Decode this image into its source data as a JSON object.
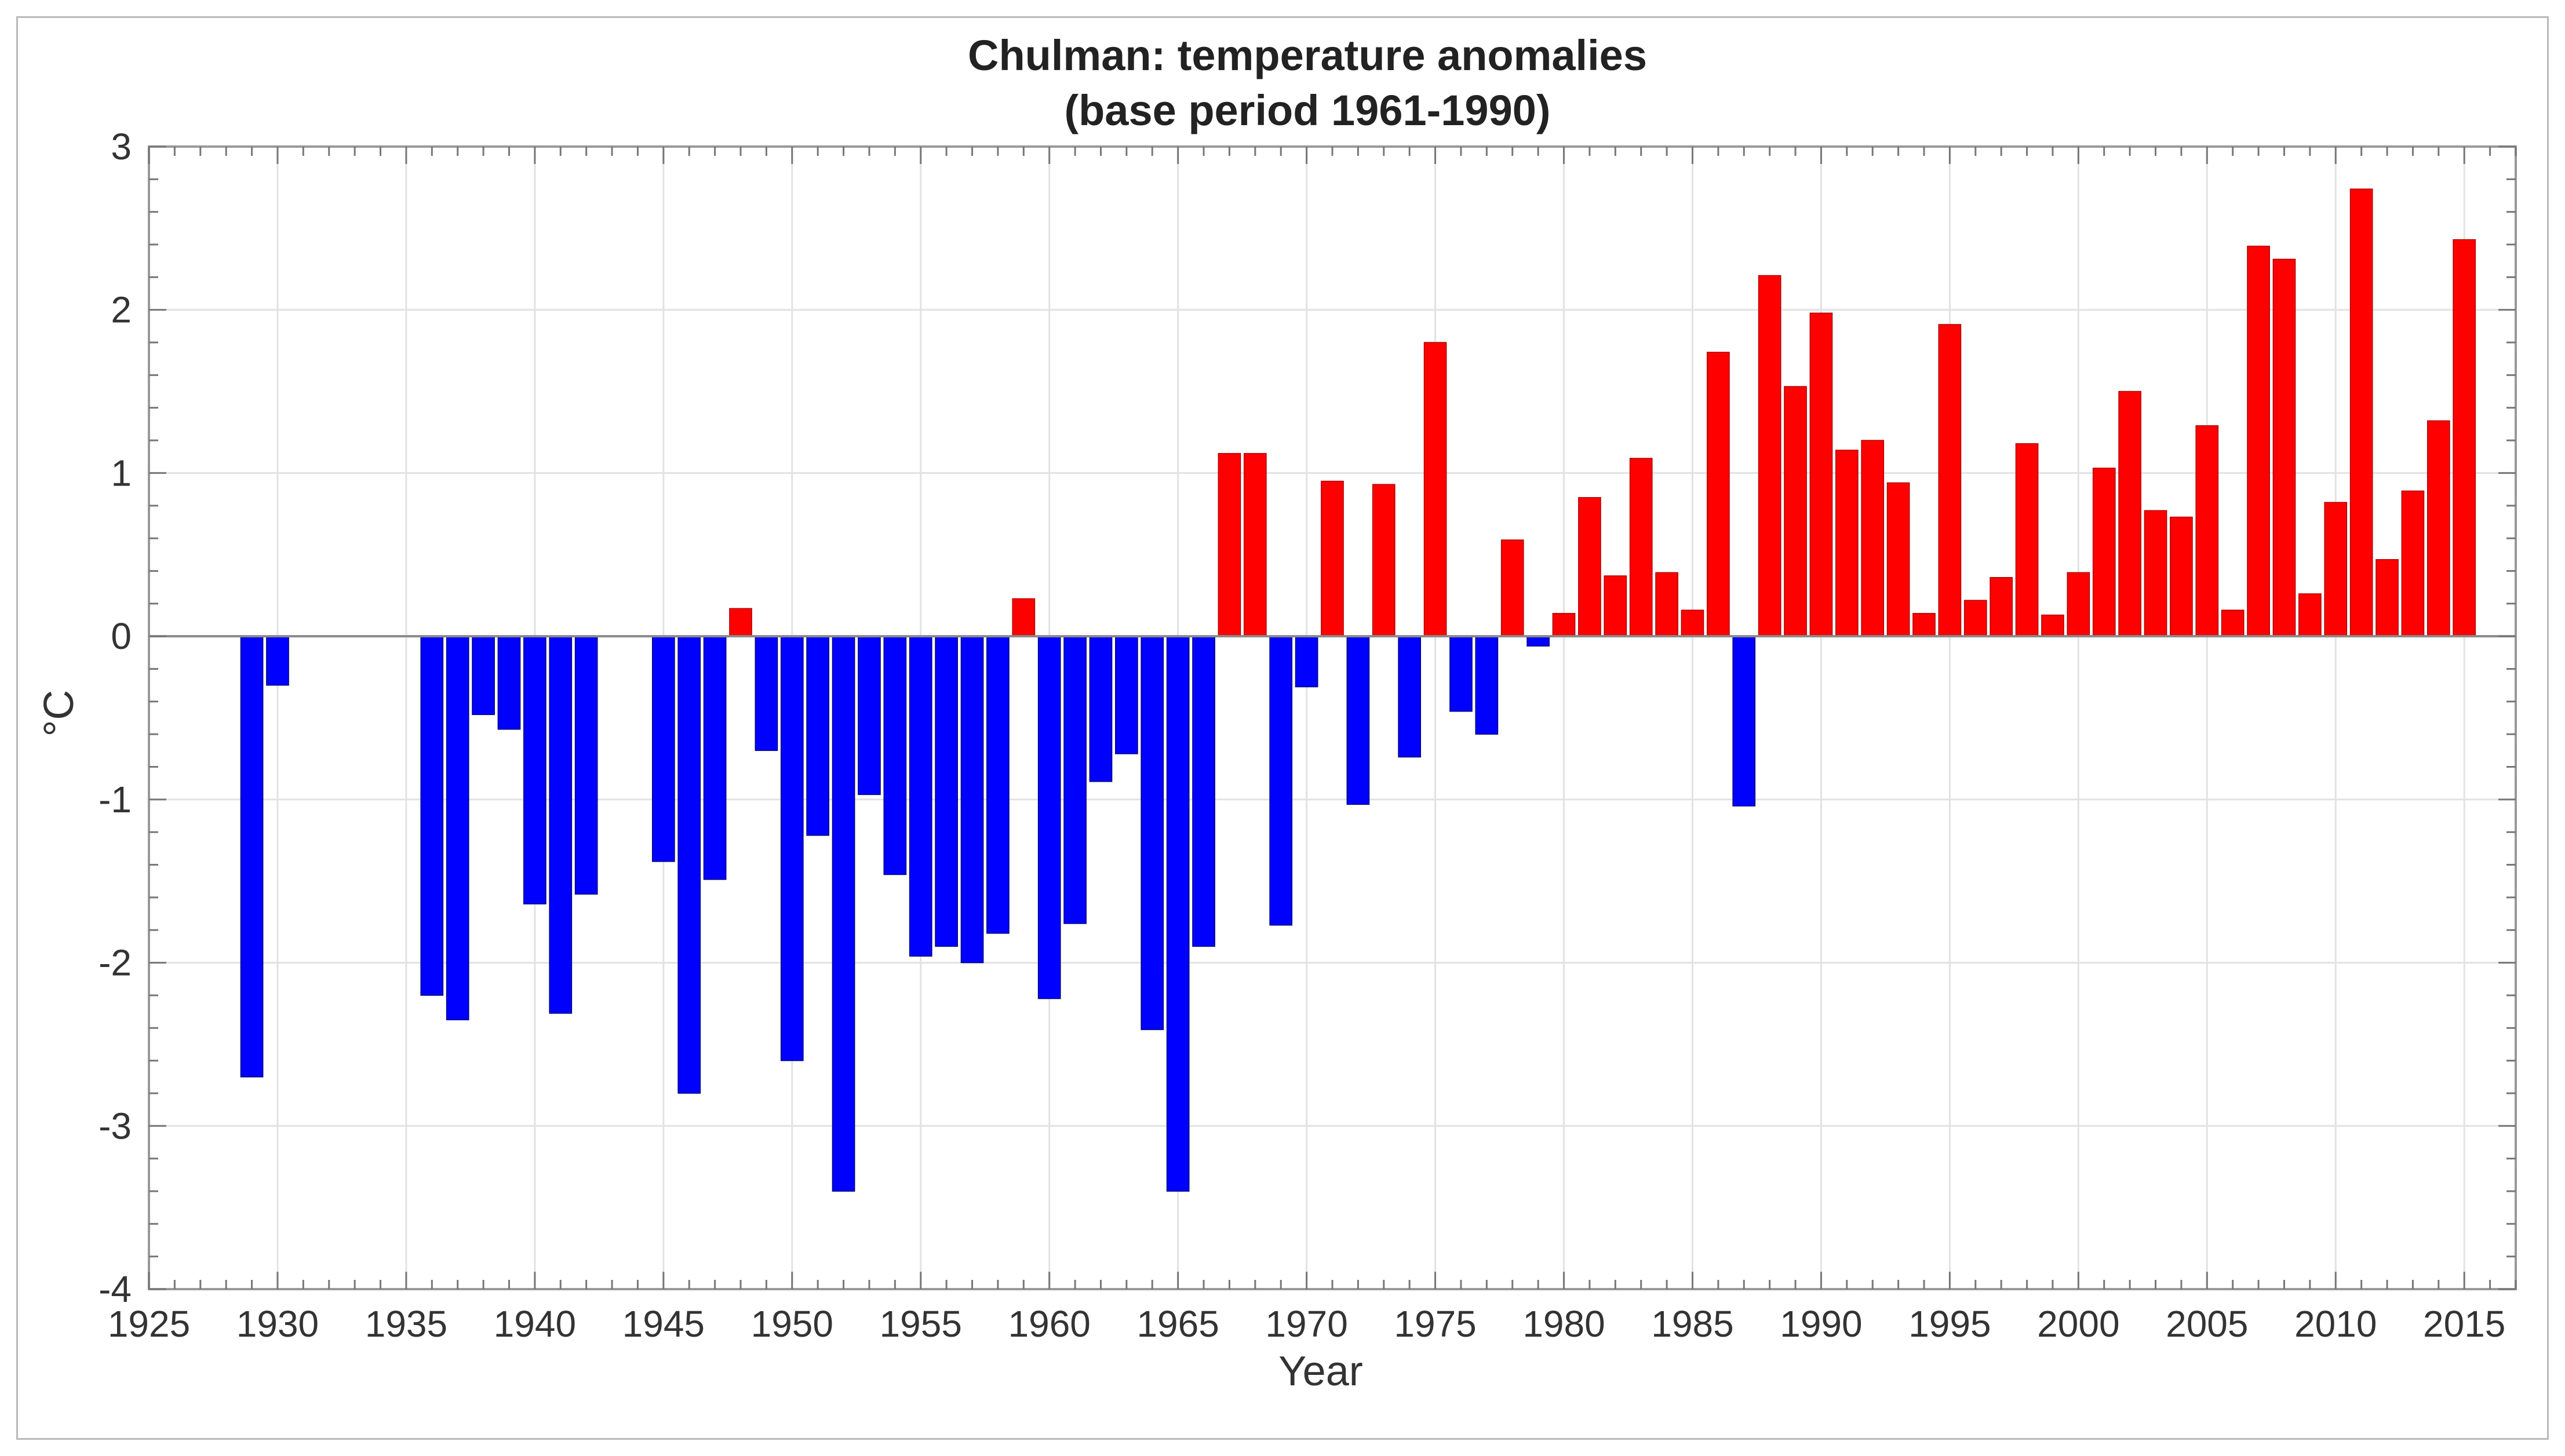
{
  "chart_data": {
    "type": "bar",
    "title": "Chulman: temperature anomalies",
    "subtitle": "(base period 1961-1990)",
    "xlabel": "Year",
    "ylabel": "°C",
    "xlim": [
      1925,
      2017
    ],
    "ylim": [
      -4,
      3
    ],
    "xticks": [
      1925,
      1930,
      1935,
      1940,
      1945,
      1950,
      1955,
      1960,
      1965,
      1970,
      1975,
      1980,
      1985,
      1990,
      1995,
      2000,
      2005,
      2010,
      2015
    ],
    "yticks": [
      -4,
      -3,
      -2,
      -1,
      0,
      1,
      2,
      3
    ],
    "grid": true,
    "colors": {
      "positive": "#ff0000",
      "negative": "#0000ff",
      "gridline": "#e2e2e2",
      "axis": "#999999"
    },
    "x": [
      1929,
      1930,
      1936,
      1937,
      1938,
      1939,
      1940,
      1941,
      1942,
      1945,
      1946,
      1947,
      1948,
      1949,
      1950,
      1951,
      1952,
      1953,
      1954,
      1955,
      1956,
      1957,
      1958,
      1959,
      1960,
      1961,
      1962,
      1963,
      1964,
      1965,
      1966,
      1967,
      1968,
      1969,
      1970,
      1971,
      1972,
      1973,
      1974,
      1975,
      1976,
      1977,
      1978,
      1979,
      1980,
      1981,
      1982,
      1983,
      1984,
      1985,
      1986,
      1987,
      1988,
      1989,
      1990,
      1991,
      1992,
      1993,
      1994,
      1995,
      1996,
      1997,
      1998,
      1999,
      2000,
      2001,
      2002,
      2003,
      2004,
      2005,
      2006,
      2007,
      2008,
      2009,
      2010,
      2011,
      2012,
      2013,
      2014,
      2015
    ],
    "values": [
      -2.7,
      -0.3,
      -2.2,
      -2.35,
      -0.48,
      -0.57,
      -1.64,
      -2.31,
      -1.58,
      -1.38,
      -2.8,
      -1.49,
      0.17,
      -0.7,
      -2.6,
      -1.22,
      -3.4,
      -0.97,
      -1.46,
      -1.96,
      -1.9,
      -2.0,
      -1.82,
      0.23,
      -2.22,
      -1.76,
      -0.89,
      -0.72,
      -2.41,
      -3.4,
      -1.9,
      1.12,
      1.12,
      -1.77,
      -0.31,
      0.95,
      -1.03,
      0.93,
      -0.74,
      1.8,
      -0.46,
      -0.6,
      0.59,
      -0.06,
      0.14,
      0.85,
      0.37,
      1.09,
      0.39,
      0.16,
      1.74,
      -1.04,
      2.21,
      1.53,
      1.98,
      1.14,
      1.2,
      0.94,
      0.14,
      1.91,
      0.22,
      0.36,
      1.18,
      0.13,
      0.39,
      1.03,
      1.5,
      0.77,
      0.73,
      1.29,
      0.16,
      2.39,
      2.31,
      0.26,
      0.82,
      2.74,
      0.47,
      0.89,
      1.32,
      2.43
    ]
  }
}
